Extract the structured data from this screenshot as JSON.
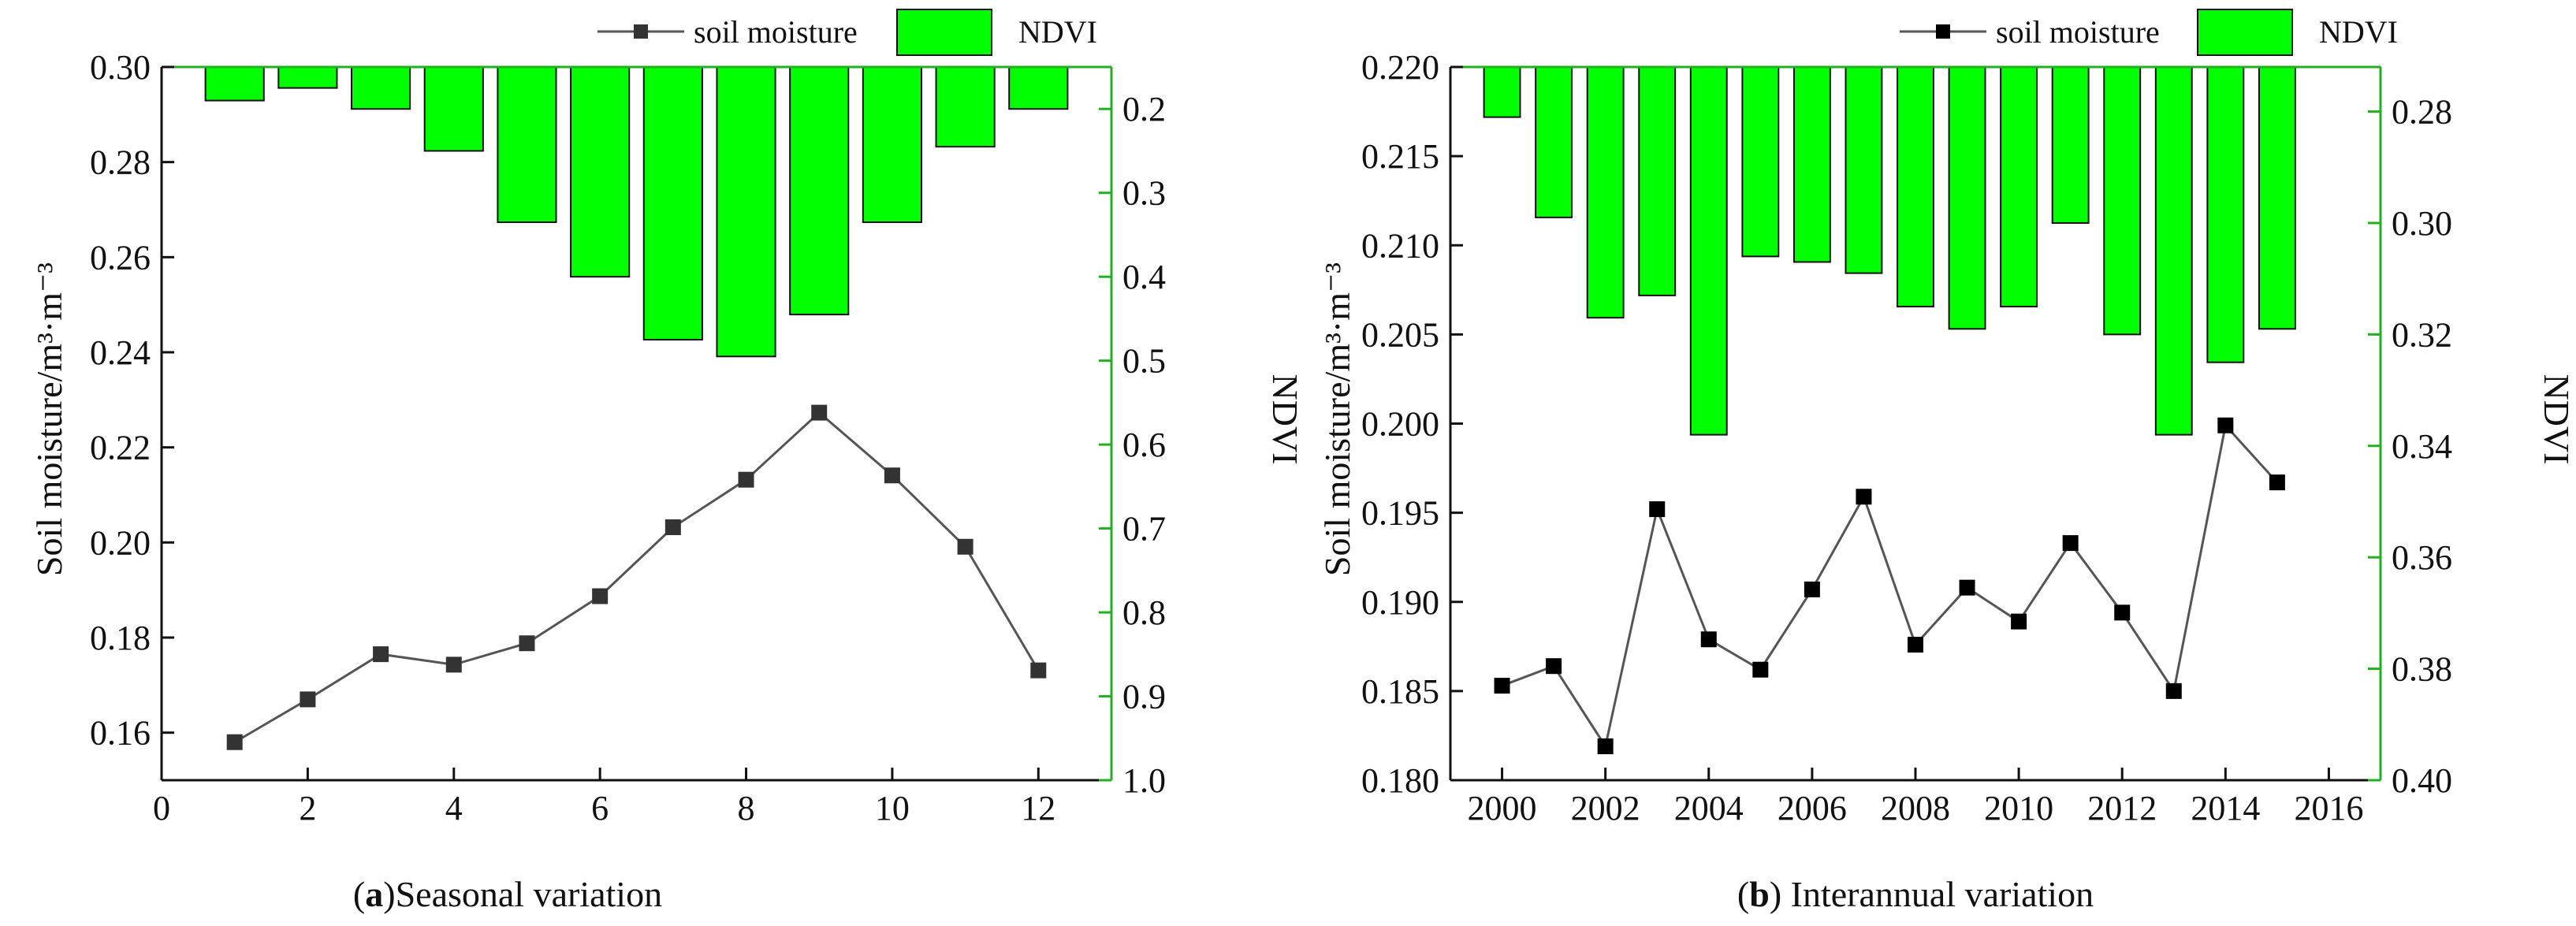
{
  "colors": {
    "bar_fill": "#00ff00",
    "bar_stroke": "#111111",
    "line": "#555555",
    "marker_a": "#333333",
    "marker_b": "#000000",
    "right_axis": "#22b022",
    "axis": "#111111"
  },
  "chart_data": [
    {
      "id": "a",
      "type": "bar+line",
      "caption_prefix": "(",
      "caption_bold": "a",
      "caption_rest": ")Seasonal variation",
      "xlabel": "",
      "ylabel": "Soil moisture/m³·m⁻³",
      "y2label": "NDVI",
      "xlim": [
        0,
        13
      ],
      "xticks": [
        0,
        2,
        4,
        6,
        8,
        10,
        12
      ],
      "xtick_labels": [
        "0",
        "2",
        "4",
        "6",
        "8",
        "10",
        "12"
      ],
      "ylim": [
        0.15,
        0.3
      ],
      "yticks": [
        0.16,
        0.18,
        0.2,
        0.22,
        0.24,
        0.26,
        0.28,
        0.3
      ],
      "ytick_labels": [
        "0.16",
        "0.18",
        "0.20",
        "0.22",
        "0.24",
        "0.26",
        "0.28",
        "0.30"
      ],
      "y2lim": [
        0.15,
        1.0
      ],
      "y2_inverted": true,
      "y2ticks": [
        0.2,
        0.3,
        0.4,
        0.5,
        0.6,
        0.7,
        0.8,
        0.9,
        1.0
      ],
      "y2tick_labels": [
        "0.2",
        "0.3",
        "0.4",
        "0.5",
        "0.6",
        "0.7",
        "0.8",
        "0.9",
        "1.0"
      ],
      "bar_width": 0.8,
      "legend": {
        "line_label": "soil moisture",
        "bar_label": "NDVI",
        "placement": "top-right"
      },
      "series": [
        {
          "name": "soil moisture",
          "kind": "line",
          "x": [
            1,
            2,
            3,
            4,
            5,
            6,
            7,
            8,
            9,
            10,
            11,
            12
          ],
          "values": [
            0.158,
            0.167,
            0.1765,
            0.1743,
            0.1788,
            0.1887,
            0.2032,
            0.2132,
            0.2273,
            0.2141,
            0.1991,
            0.1731
          ]
        },
        {
          "name": "NDVI",
          "kind": "bar",
          "axis": "right",
          "x": [
            1,
            2,
            3,
            4,
            5,
            6,
            7,
            8,
            9,
            10,
            11,
            12
          ],
          "values": [
            0.19,
            0.175,
            0.2,
            0.25,
            0.335,
            0.4,
            0.475,
            0.495,
            0.445,
            0.335,
            0.245,
            0.2
          ]
        }
      ]
    },
    {
      "id": "b",
      "type": "bar+line",
      "caption_prefix": "(",
      "caption_bold": "b",
      "caption_rest": ") Interannual variation",
      "xlabel": "",
      "ylabel": "Soil moisture/m³·m⁻³",
      "y2label": "NDVI",
      "xlim": [
        1999,
        2017
      ],
      "xticks": [
        2000,
        2002,
        2004,
        2006,
        2008,
        2010,
        2012,
        2014,
        2016
      ],
      "xtick_labels": [
        "2000",
        "2002",
        "2004",
        "2006",
        "2008",
        "2010",
        "2012",
        "2014",
        "2016"
      ],
      "ylim": [
        0.18,
        0.22
      ],
      "yticks": [
        0.18,
        0.185,
        0.19,
        0.195,
        0.2,
        0.205,
        0.21,
        0.215,
        0.22
      ],
      "ytick_labels": [
        "0.180",
        "0.185",
        "0.190",
        "0.195",
        "0.200",
        "0.205",
        "0.210",
        "0.215",
        "0.220"
      ],
      "y2lim": [
        0.272,
        0.4
      ],
      "y2_inverted": true,
      "y2ticks": [
        0.28,
        0.3,
        0.32,
        0.34,
        0.36,
        0.38,
        0.4
      ],
      "y2tick_labels": [
        "0.28",
        "0.30",
        "0.32",
        "0.34",
        "0.36",
        "0.38",
        "0.40"
      ],
      "bar_width": 0.7,
      "legend": {
        "line_label": "soil moisture",
        "bar_label": "NDVI",
        "placement": "top-right"
      },
      "series": [
        {
          "name": "soil moisture",
          "kind": "line",
          "x": [
            2000,
            2001,
            2002,
            2003,
            2004,
            2005,
            2006,
            2007,
            2008,
            2009,
            2010,
            2011,
            2012,
            2013,
            2014,
            2015
          ],
          "values": [
            0.1853,
            0.1864,
            0.1819,
            0.1952,
            0.1879,
            0.1862,
            0.1907,
            0.1959,
            0.1876,
            0.1908,
            0.1889,
            0.1933,
            0.1894,
            0.185,
            0.1999,
            0.1967
          ]
        },
        {
          "name": "NDVI",
          "kind": "bar",
          "axis": "right",
          "x": [
            2000,
            2001,
            2002,
            2003,
            2004,
            2005,
            2006,
            2007,
            2008,
            2009,
            2010,
            2011,
            2012,
            2013,
            2014,
            2015
          ],
          "values": [
            0.281,
            0.299,
            0.317,
            0.313,
            0.338,
            0.306,
            0.307,
            0.309,
            0.315,
            0.319,
            0.315,
            0.3,
            0.32,
            0.338,
            0.325,
            0.319
          ]
        }
      ]
    }
  ]
}
